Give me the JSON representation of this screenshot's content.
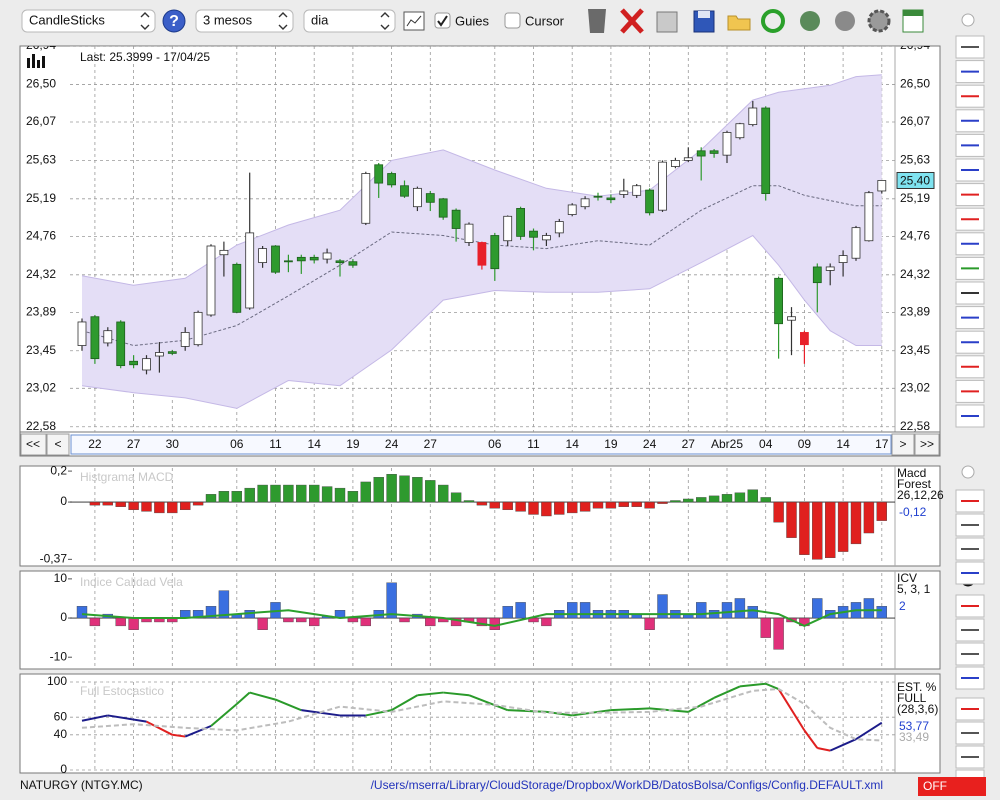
{
  "toolbar": {
    "chart_type": "CandleSticks",
    "help": "?",
    "period": "3 mesos",
    "interval": "dia",
    "guides": "Guies",
    "guides_checked": true,
    "cursor": "Cursor",
    "cursor_checked": false
  },
  "chart_data": [
    {
      "type": "candlestick",
      "info": "Last: 25.3999 - 17/04/25",
      "categories": [
        null,
        "22",
        null,
        null,
        "27",
        null,
        null,
        "30",
        null,
        null,
        null,
        null,
        "06",
        null,
        null,
        "11",
        null,
        null,
        "14",
        null,
        null,
        "19",
        null,
        null,
        "24",
        null,
        null,
        "27",
        null,
        null,
        null,
        null,
        "06",
        null,
        null,
        "11",
        null,
        null,
        "14",
        null,
        null,
        "19",
        null,
        null,
        "24",
        null,
        null,
        "27",
        null,
        null,
        "Abr25",
        null,
        null,
        "04",
        null,
        null,
        "09",
        null,
        null,
        "14",
        null,
        null,
        "17"
      ],
      "open": [
        23.51,
        23.84,
        23.54,
        23.78,
        23.33,
        23.23,
        23.39,
        23.44,
        23.5,
        23.52,
        23.86,
        24.55,
        24.44,
        23.94,
        24.46,
        24.65,
        24.48,
        24.52,
        24.52,
        24.5,
        24.48,
        24.47,
        24.91,
        25.58,
        25.48,
        25.34,
        25.1,
        25.25,
        25.19,
        25.06,
        24.69,
        24.69,
        24.77,
        24.71,
        25.08,
        24.82,
        24.72,
        24.8,
        25.01,
        25.1,
        25.22,
        25.2,
        25.24,
        25.23,
        25.29,
        25.06,
        25.56,
        25.63,
        25.74,
        25.74,
        25.69,
        25.89,
        26.04,
        26.23,
        24.28,
        23.8,
        23.66,
        24.41,
        24.37,
        24.46,
        24.51,
        24.71,
        25.28
      ],
      "high": [
        23.82,
        23.86,
        23.72,
        23.8,
        23.4,
        23.4,
        23.55,
        23.46,
        23.72,
        23.91,
        24.67,
        24.7,
        24.46,
        25.49,
        24.65,
        24.66,
        24.55,
        24.55,
        24.55,
        24.62,
        24.5,
        24.5,
        25.5,
        25.6,
        25.5,
        25.4,
        25.33,
        25.28,
        25.2,
        25.08,
        24.92,
        24.7,
        24.8,
        25.0,
        25.1,
        24.85,
        24.8,
        24.96,
        25.14,
        25.22,
        25.26,
        25.24,
        25.42,
        25.36,
        25.31,
        25.63,
        25.66,
        25.78,
        25.78,
        25.76,
        25.97,
        26.06,
        26.31,
        26.25,
        24.3,
        23.95,
        23.68,
        24.45,
        24.45,
        24.6,
        24.88,
        25.28,
        25.4
      ],
      "low": [
        23.45,
        23.3,
        23.5,
        23.25,
        23.25,
        23.18,
        23.2,
        23.4,
        23.45,
        23.5,
        23.84,
        24.3,
        23.88,
        23.92,
        24.4,
        24.33,
        24.35,
        24.33,
        24.45,
        24.45,
        24.3,
        24.4,
        24.89,
        25.2,
        25.32,
        25.2,
        25.05,
        25.05,
        24.95,
        24.7,
        24.65,
        24.38,
        24.25,
        24.65,
        24.72,
        24.6,
        24.65,
        24.75,
        24.99,
        25.07,
        25.17,
        25.14,
        25.2,
        25.2,
        25.0,
        25.04,
        25.54,
        25.61,
        25.4,
        25.66,
        25.6,
        25.87,
        26.02,
        25.17,
        23.36,
        23.4,
        23.3,
        23.89,
        24.2,
        24.3,
        24.48,
        24.7,
        25.25
      ],
      "close": [
        23.78,
        23.36,
        23.68,
        23.28,
        23.29,
        23.36,
        23.43,
        23.42,
        23.66,
        23.89,
        24.65,
        24.6,
        23.89,
        24.8,
        24.62,
        24.35,
        24.47,
        24.48,
        24.49,
        24.57,
        24.46,
        24.43,
        25.48,
        25.37,
        25.35,
        25.22,
        25.31,
        25.15,
        24.98,
        24.85,
        24.9,
        24.43,
        24.39,
        24.99,
        24.76,
        24.75,
        24.77,
        24.93,
        25.12,
        25.19,
        25.21,
        25.18,
        25.28,
        25.34,
        25.03,
        25.61,
        25.63,
        25.66,
        25.68,
        25.71,
        25.95,
        26.05,
        26.23,
        25.25,
        23.76,
        23.84,
        23.52,
        24.23,
        24.41,
        24.54,
        24.86,
        25.26,
        25.4
      ],
      "up_color": "#ffffff",
      "down_color": "#2e9a2e",
      "alert_color": "#e8202a",
      "alert_candles": [
        31,
        56
      ],
      "bands": {
        "x": [
          0,
          4,
          8,
          12,
          16,
          20,
          24,
          28,
          32,
          36,
          40,
          44,
          48,
          52,
          54,
          56,
          58,
          60,
          62
        ],
        "upper": [
          24.31,
          24.2,
          24.28,
          24.66,
          24.89,
          25.06,
          25.63,
          25.75,
          25.52,
          25.31,
          25.22,
          25.29,
          25.75,
          26.32,
          26.41,
          26.45,
          26.49,
          26.59,
          26.61
        ],
        "middle": [
          23.68,
          23.51,
          23.57,
          23.74,
          24.08,
          24.43,
          24.81,
          24.77,
          24.66,
          24.62,
          24.71,
          24.66,
          25.06,
          25.34,
          25.34,
          25.23,
          25.17,
          25.11,
          25.11
        ],
        "lower": [
          23.05,
          22.97,
          22.91,
          22.79,
          23.11,
          23.05,
          23.46,
          24.03,
          24.14,
          24.12,
          24.12,
          24.16,
          24.46,
          24.77,
          24.43,
          24.03,
          23.68,
          23.51,
          23.51
        ],
        "fill": "#e4def6",
        "color": "#c4b8e6",
        "middle_color": "#6a6a80"
      },
      "last_tag": {
        "value": 25.4,
        "label": "25,40",
        "color": "#7fe3f0"
      },
      "ylim": [
        22.52,
        26.94
      ],
      "yticks": [
        {
          "value": 22.58,
          "label": "22,58"
        },
        {
          "value": 23.02,
          "label": "23,02"
        },
        {
          "value": 23.45,
          "label": "23,45"
        },
        {
          "value": 23.89,
          "label": "23,89"
        },
        {
          "value": 24.32,
          "label": "24,32"
        },
        {
          "value": 24.76,
          "label": "24,76"
        },
        {
          "value": 25.19,
          "label": "25,19"
        },
        {
          "value": 25.63,
          "label": "25,63"
        },
        {
          "value": 26.07,
          "label": "26,07"
        },
        {
          "value": 26.5,
          "label": "26,50"
        },
        {
          "value": 26.94,
          "label": "26,94"
        }
      ],
      "grid": true
    },
    {
      "type": "bar",
      "title": "Histgrama MACD",
      "side_text": [
        "Macd",
        "Forest",
        "26,12,26"
      ],
      "side_values": [
        "-0,12"
      ],
      "side_value_colors": [
        "#2040d0"
      ],
      "values": [
        null,
        -0.02,
        -0.02,
        -0.03,
        -0.05,
        -0.06,
        -0.07,
        -0.07,
        -0.05,
        -0.02,
        0.05,
        0.07,
        0.07,
        0.09,
        0.11,
        0.11,
        0.11,
        0.11,
        0.11,
        0.1,
        0.09,
        0.07,
        0.13,
        0.16,
        0.18,
        0.17,
        0.16,
        0.14,
        0.11,
        0.06,
        0.01,
        -0.02,
        -0.04,
        -0.05,
        -0.06,
        -0.08,
        -0.09,
        -0.08,
        -0.07,
        -0.06,
        -0.04,
        -0.04,
        -0.03,
        -0.03,
        -0.04,
        -0.01,
        0.01,
        0.02,
        0.03,
        0.04,
        0.05,
        0.06,
        0.08,
        0.03,
        -0.13,
        -0.23,
        -0.34,
        -0.37,
        -0.36,
        -0.32,
        -0.27,
        -0.2,
        -0.12
      ],
      "pos_color": "#2e9a2e",
      "neg_color": "#e0201e",
      "ylim": [
        -0.4,
        0.22
      ],
      "yticks": [
        {
          "value": 0.2,
          "label": "0,2"
        },
        0,
        {
          "value": -0.37,
          "label": "-0,37"
        }
      ],
      "grid": false
    },
    {
      "type": "bar",
      "title": "Indice Calidad Vela",
      "side_text": [
        "ICV",
        "5, 3, 1"
      ],
      "side_values": [
        "2"
      ],
      "side_value_colors": [
        "#2040d0"
      ],
      "values": [
        3,
        -2,
        1,
        -2,
        -3,
        -1,
        -1,
        -1,
        2,
        2,
        3,
        7,
        1,
        2,
        -3,
        4,
        -1,
        -1,
        -2,
        0.5,
        2,
        -1,
        -2,
        2,
        9,
        -1,
        1,
        -2,
        -1,
        -2,
        -1,
        -2,
        -3,
        3,
        4,
        -1,
        -2,
        2,
        4,
        4,
        2,
        2,
        2,
        1,
        -3,
        6,
        2,
        1,
        4,
        2,
        4,
        5,
        3,
        -5,
        -8,
        -1,
        -2,
        5,
        2,
        3,
        4,
        5,
        3
      ],
      "pos_color": "#3a6fe0",
      "neg_color": "#e0307a",
      "series": [
        {
          "x": [
            0,
            4,
            8,
            12,
            16,
            20,
            24,
            28,
            32,
            36,
            40,
            44,
            48,
            52,
            54,
            56,
            58,
            60,
            62
          ],
          "values": [
            1,
            0,
            0,
            1,
            2,
            0,
            1,
            0,
            -2,
            1,
            1,
            1,
            1,
            2,
            1,
            -2,
            1,
            2,
            2
          ],
          "color": "#2ca02c"
        }
      ],
      "ylim": [
        -12.5,
        11.5
      ],
      "yticks": [
        10,
        0,
        -10
      ],
      "grid": false
    },
    {
      "type": "line",
      "title": "Full Estocastico",
      "side_text": [
        "EST. %",
        "FULL",
        "(28,3,6)"
      ],
      "side_values": [
        "53,77",
        "33,49"
      ],
      "side_value_colors": [
        "#2040d0",
        "#aaaaaa"
      ],
      "series": [
        {
          "x": [
            0,
            2,
            5,
            7,
            8,
            10,
            12,
            13,
            15,
            17,
            20,
            22,
            24,
            26,
            28,
            30,
            33,
            36,
            38,
            41,
            44,
            47,
            49,
            51,
            53,
            54,
            56,
            57,
            58,
            60,
            62
          ],
          "values": [
            56,
            62,
            55,
            40,
            38,
            50,
            75,
            88,
            80,
            68,
            62,
            62,
            68,
            85,
            88,
            85,
            68,
            66,
            62,
            68,
            70,
            66,
            82,
            95,
            98,
            92,
            45,
            25,
            22,
            35,
            53.77
          ],
          "colors": [
            "#1c1c8a",
            "#1c1c8a",
            "#e02020",
            "#e02020",
            "#1c1c8a",
            "#2a9a2a",
            "#2a9a2a",
            "#2a9a2a",
            "#2a9a2a",
            "#1c1c8a",
            "#1c1c8a",
            "#2a9a2a",
            "#2a9a2a",
            "#2a9a2a",
            "#2a9a2a",
            "#2a9a2a",
            "#2a9a2a",
            "#2a9a2a",
            "#2a9a2a",
            "#2a9a2a",
            "#2a9a2a",
            "#2a9a2a",
            "#2a9a2a",
            "#2a9a2a",
            "#2a9a2a",
            "#e02020",
            "#e02020",
            "#e02020",
            "#1c1c8a",
            "#1c1c8a",
            "#1c1c8a"
          ]
        },
        {
          "x": [
            0,
            4,
            8,
            12,
            16,
            20,
            24,
            28,
            32,
            36,
            40,
            44,
            48,
            52,
            54,
            56,
            58,
            60,
            62
          ],
          "values": [
            48,
            52,
            48,
            45,
            55,
            72,
            66,
            78,
            74,
            65,
            65,
            66,
            72,
            90,
            92,
            75,
            48,
            35,
            33.49
          ],
          "color": "#bdbdbd",
          "dashed": true
        }
      ],
      "ylim": [
        0,
        100
      ],
      "yticks": [
        100,
        60,
        40,
        0
      ],
      "grid": true
    }
  ],
  "scroll": {
    "first": "<<",
    "prev": "<",
    "next": ">",
    "last": ">>"
  },
  "status": {
    "symbol": "NATURGY (NTGY.MC)",
    "path": "/Users/mserra/Library/CloudStorage/Dropbox/WorkDB/DatosBolsa/Configs/Config.DEFAULT.xml",
    "mode": "OFF"
  }
}
